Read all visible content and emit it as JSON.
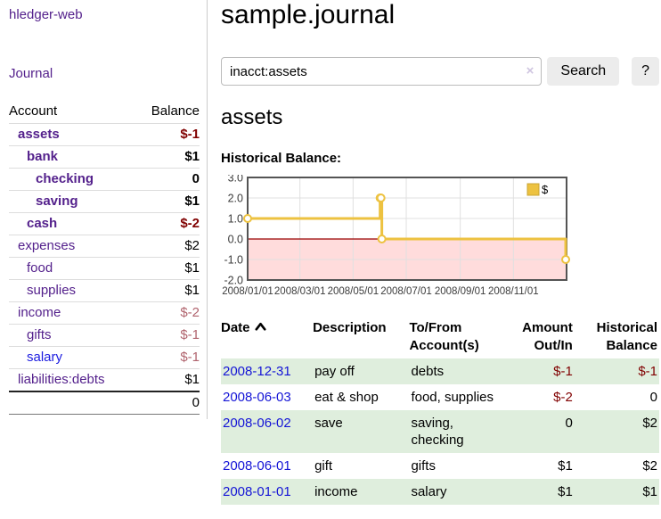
{
  "sidebar": {
    "app_title": "hledger-web",
    "nav": {
      "journal_label": "Journal"
    },
    "accounts_table": {
      "headers": [
        "Account",
        "Balance"
      ],
      "rows": [
        {
          "name": "assets",
          "indent": 1,
          "bold": true,
          "balance": "$-1",
          "balance_style": "neg-strong"
        },
        {
          "name": "bank",
          "indent": 2,
          "bold": true,
          "balance": "$1",
          "balance_style": "pos"
        },
        {
          "name": "checking",
          "indent": 3,
          "bold": true,
          "balance": "0",
          "balance_style": "pos"
        },
        {
          "name": "saving",
          "indent": 3,
          "bold": true,
          "balance": "$1",
          "balance_style": "pos"
        },
        {
          "name": "cash",
          "indent": 2,
          "bold": true,
          "balance": "$-2",
          "balance_style": "neg-strong"
        },
        {
          "name": "expenses",
          "indent": 1,
          "bold": false,
          "balance": "$2",
          "balance_style": "pos"
        },
        {
          "name": "food",
          "indent": 2,
          "bold": false,
          "balance": "$1",
          "balance_style": "pos"
        },
        {
          "name": "supplies",
          "indent": 2,
          "bold": false,
          "balance": "$1",
          "balance_style": "pos"
        },
        {
          "name": "income",
          "indent": 1,
          "bold": false,
          "balance": "$-2",
          "balance_style": "neg-soft"
        },
        {
          "name": "gifts",
          "indent": 2,
          "bold": false,
          "balance": "$-1",
          "balance_style": "neg-soft"
        },
        {
          "name": "salary",
          "indent": 2,
          "bold": false,
          "balance": "$-1",
          "balance_style": "neg-soft",
          "link_color": "blue"
        },
        {
          "name": "liabilities:debts",
          "indent": 1,
          "bold": false,
          "balance": "$1",
          "balance_style": "pos"
        }
      ],
      "total": "0"
    }
  },
  "main": {
    "title": "sample.journal",
    "search": {
      "value": "inacct:assets",
      "clear_icon": "×",
      "button_label": "Search",
      "help_label": "?"
    },
    "account_heading": "assets",
    "chart_label": "Historical Balance:"
  },
  "chart_data": {
    "type": "line",
    "title": "Historical Balance:",
    "step": "after",
    "x_range": [
      "2008-01-01",
      "2009-01-01"
    ],
    "ylim": [
      -2.0,
      3.0
    ],
    "yticks": [
      "3.0",
      "2.0",
      "1.0",
      "0.0",
      "-1.0",
      "-2.0"
    ],
    "xticks": [
      "2008/01/01",
      "2008/03/01",
      "2008/05/01",
      "2008/07/01",
      "2008/09/01",
      "2008/11/01"
    ],
    "legend": {
      "position": "top-right",
      "entries": [
        {
          "label": "$",
          "color": "#EDC240"
        }
      ]
    },
    "series": [
      {
        "name": "$",
        "color": "#EDC240",
        "marker": "open-circle",
        "points": [
          {
            "date": "2008-01-01",
            "value": 1
          },
          {
            "date": "2008-06-01",
            "value": 2
          },
          {
            "date": "2008-06-02",
            "value": 2
          },
          {
            "date": "2008-06-03",
            "value": 0
          },
          {
            "date": "2008-12-31",
            "value": -1
          }
        ]
      }
    ],
    "grid": true,
    "negative_region_color": "#ffdcdc",
    "zero_line_color": "#990000",
    "gridline_color": "#e0e0e0",
    "border_color": "#545454"
  },
  "register_table": {
    "headers": {
      "date": "Date",
      "description": "Description",
      "accounts": "To/From Account(s)",
      "amount": "Amount Out/In",
      "balance": "Historical Balance"
    },
    "sort": {
      "column": "date",
      "direction": "ascending"
    },
    "rows": [
      {
        "date": "2008-12-31",
        "description": "pay off",
        "accounts": "debts",
        "amount": "$-1",
        "amount_neg": true,
        "balance": "$-1",
        "balance_neg": true
      },
      {
        "date": "2008-06-03",
        "description": "eat & shop",
        "accounts": "food, supplies",
        "amount": "$-2",
        "amount_neg": true,
        "balance": "0",
        "balance_neg": false
      },
      {
        "date": "2008-06-02",
        "description": "save",
        "accounts": "saving, checking",
        "amount": "0",
        "amount_neg": false,
        "balance": "$2",
        "balance_neg": false
      },
      {
        "date": "2008-06-01",
        "description": "gift",
        "accounts": "gifts",
        "amount": "$1",
        "amount_neg": false,
        "balance": "$2",
        "balance_neg": false
      },
      {
        "date": "2008-01-01",
        "description": "income",
        "accounts": "salary",
        "amount": "$1",
        "amount_neg": false,
        "balance": "$1",
        "balance_neg": false
      }
    ]
  },
  "colors": {
    "link_purple": "#54218c",
    "link_blue": "#1d1de0",
    "date_blue": "#1414d6",
    "neg_strong": "#800000",
    "neg_soft": "#b0636d",
    "stripe_green": "#dfeedd",
    "series_yellow": "#EDC240"
  }
}
